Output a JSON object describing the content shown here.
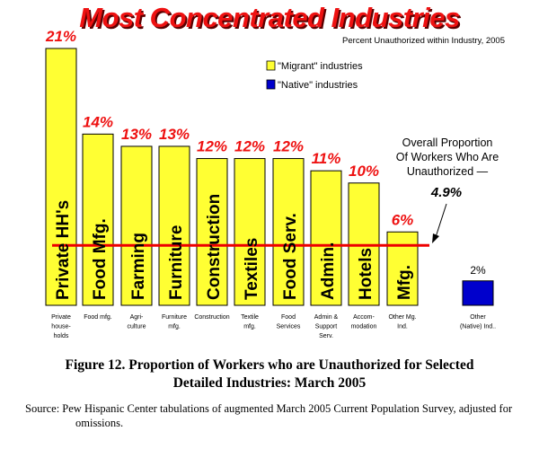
{
  "title": "Most Concentrated Industries",
  "subtitle": "Percent Unauthorized within Industry, 2005",
  "legend": [
    {
      "label": "\"Migrant\" industries",
      "color": "#ffff33"
    },
    {
      "label": "\"Native\" industries",
      "color": "#0000cc"
    }
  ],
  "annotation": {
    "lines": [
      "Overall Proportion",
      "Of Workers Who Are",
      "Unauthorized —"
    ],
    "value": "4.9%"
  },
  "figure_caption": {
    "line1": "Figure 12.  Proportion of Workers who are Unauthorized for Selected",
    "line2": "Detailed Industries:  March 2005"
  },
  "source": "Source:  Pew Hispanic Center tabulations of augmented March 2005 Current Population Survey, adjusted for omissions.",
  "chart_data": {
    "type": "bar",
    "title": "Most Concentrated Industries",
    "subtitle": "Percent Unauthorized within Industry, 2005",
    "reference_line": {
      "value": 4.9,
      "color": "#ee0000"
    },
    "colors": {
      "migrant": "#ffff33",
      "native": "#0000cc",
      "value_label": "#ee1111"
    },
    "bars": [
      {
        "bar_label": "Private HH's",
        "category": [
          "Private",
          "house-",
          "holds"
        ],
        "value": 21,
        "value_label": "21%",
        "group": "migrant"
      },
      {
        "bar_label": "Food Mfg.",
        "category": [
          "Food mfg."
        ],
        "value": 14,
        "value_label": "14%",
        "group": "migrant"
      },
      {
        "bar_label": "Farming",
        "category": [
          "Agri-",
          "culture"
        ],
        "value": 13,
        "value_label": "13%",
        "group": "migrant"
      },
      {
        "bar_label": "Furniture",
        "category": [
          "Furniture",
          "mfg."
        ],
        "value": 13,
        "value_label": "13%",
        "group": "migrant"
      },
      {
        "bar_label": "Construction",
        "category": [
          "Construction"
        ],
        "value": 12,
        "value_label": "12%",
        "group": "migrant"
      },
      {
        "bar_label": "Textiles",
        "category": [
          "Textile",
          "mfg."
        ],
        "value": 12,
        "value_label": "12%",
        "group": "migrant"
      },
      {
        "bar_label": "Food Serv.",
        "category": [
          "Food",
          "Services"
        ],
        "value": 12,
        "value_label": "12%",
        "group": "migrant"
      },
      {
        "bar_label": "Admin.",
        "category": [
          "Admin &",
          "Support",
          "Serv."
        ],
        "value": 11,
        "value_label": "11%",
        "group": "migrant"
      },
      {
        "bar_label": "Hotels",
        "category": [
          "Accom-",
          "modation"
        ],
        "value": 10,
        "value_label": "10%",
        "group": "migrant"
      },
      {
        "bar_label": "Mfg.",
        "category": [
          "Other Mg.",
          "Ind."
        ],
        "value": 6,
        "value_label": "6%",
        "group": "migrant"
      },
      {
        "bar_label": "",
        "category": [
          "Other",
          "(Native) Ind.."
        ],
        "value": 2,
        "value_label": "2%",
        "group": "native"
      }
    ]
  }
}
